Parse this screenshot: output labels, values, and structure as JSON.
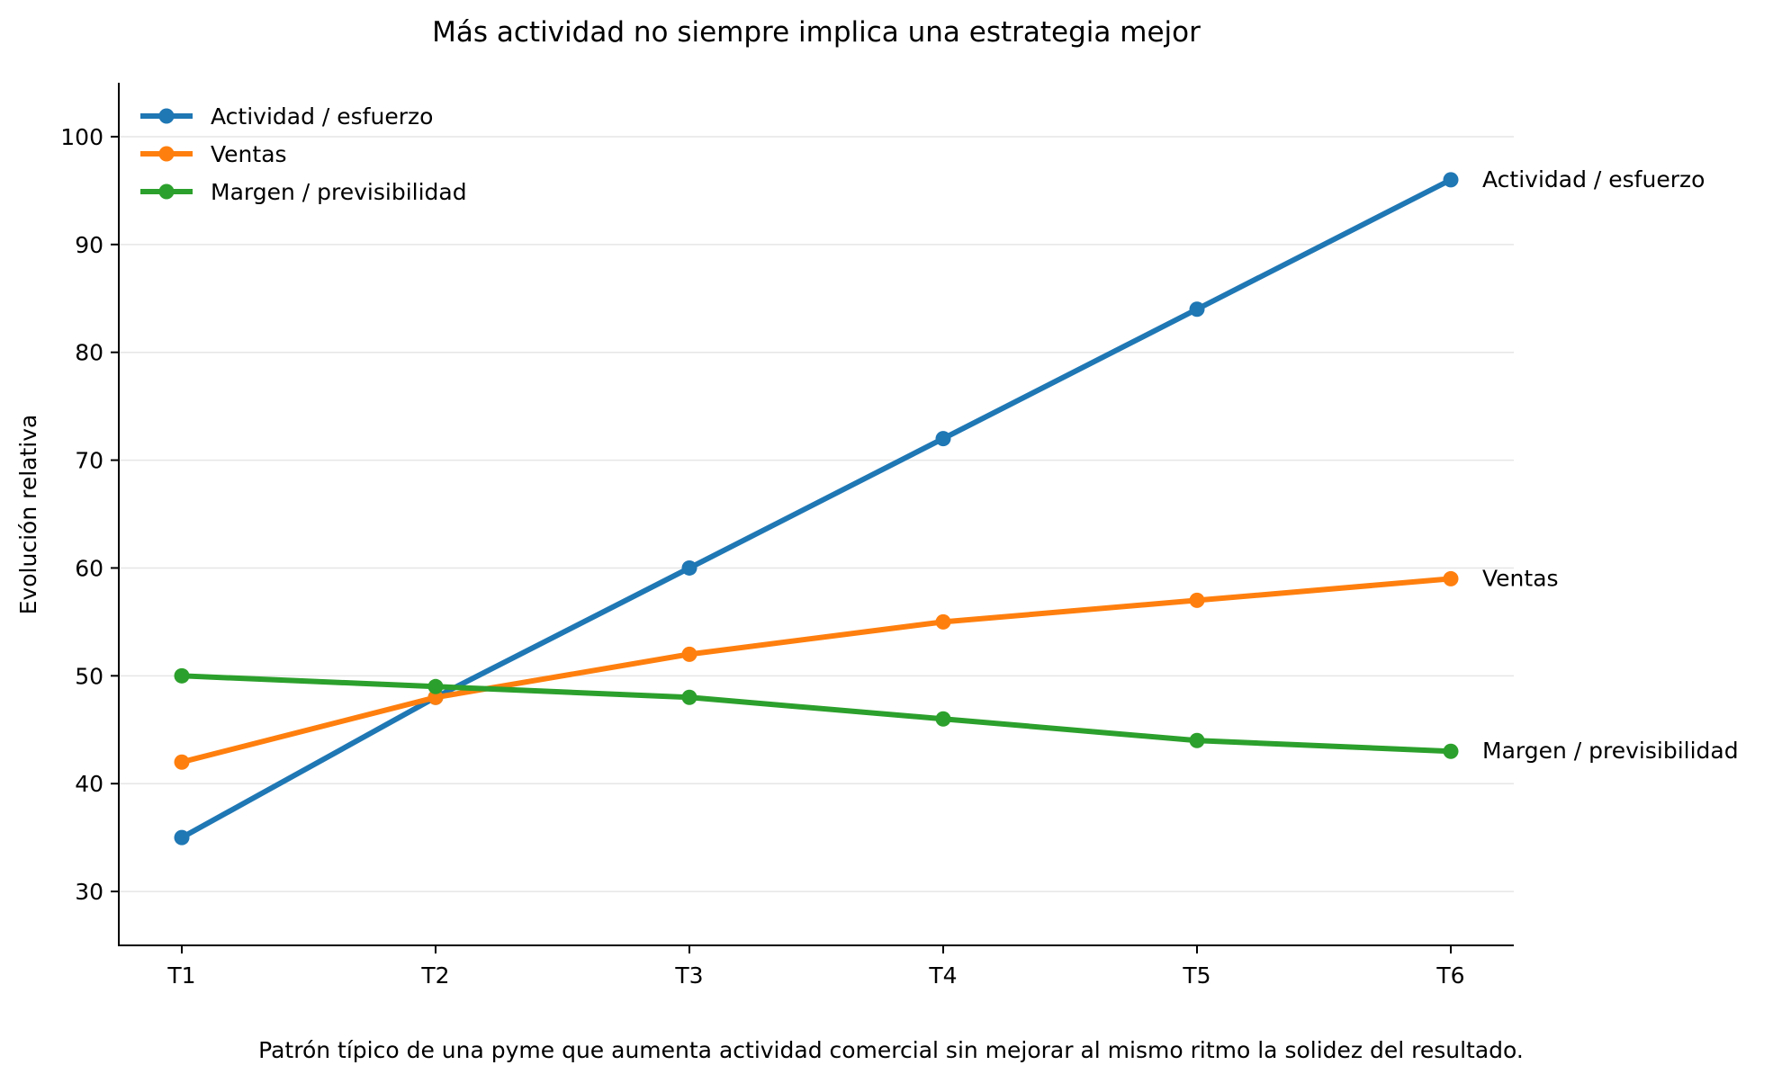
{
  "chart_data": {
    "type": "line",
    "title": "Más actividad no siempre implica una estrategia mejor",
    "xlabel": "",
    "ylabel": "Evolución relativa",
    "caption": "Patrón típico de una pyme que aumenta actividad comercial sin mejorar al mismo ritmo la solidez del resultado.",
    "categories": [
      "T1",
      "T2",
      "T3",
      "T4",
      "T5",
      "T6"
    ],
    "ylim": [
      25,
      105
    ],
    "yticks": [
      30,
      40,
      50,
      60,
      70,
      80,
      90,
      100
    ],
    "grid": "horizontal",
    "legend_position": "top-left",
    "series": [
      {
        "name": "Actividad / esfuerzo",
        "color": "#1f77b4",
        "values": [
          35,
          48,
          60,
          72,
          84,
          96
        ]
      },
      {
        "name": "Ventas",
        "color": "#ff7f0e",
        "values": [
          42,
          48,
          52,
          55,
          57,
          59
        ]
      },
      {
        "name": "Margen / previsibilidad",
        "color": "#2ca02c",
        "values": [
          50,
          49,
          48,
          46,
          44,
          43
        ]
      }
    ]
  }
}
